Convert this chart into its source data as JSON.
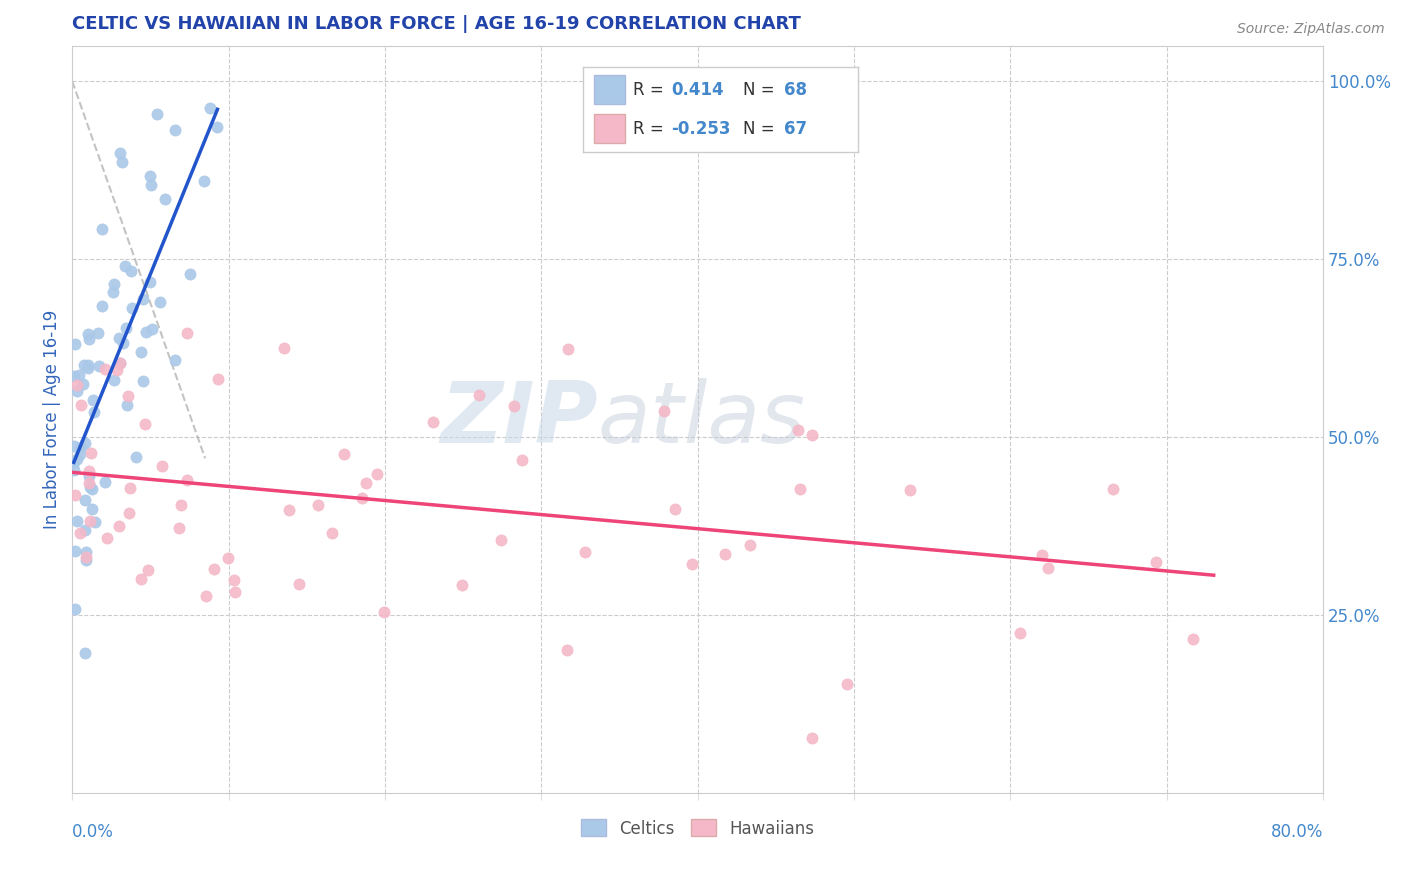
{
  "title": "CELTIC VS HAWAIIAN IN LABOR FORCE | AGE 16-19 CORRELATION CHART",
  "source": "Source: ZipAtlas.com",
  "ylabel": "In Labor Force | Age 16-19",
  "right_yticks": [
    0.25,
    0.5,
    0.75,
    1.0
  ],
  "right_yticklabels": [
    "25.0%",
    "50.0%",
    "75.0%",
    "100.0%"
  ],
  "legend_r1": "R =  0.414",
  "legend_n1": "N = 68",
  "legend_r2": "R = -0.253",
  "legend_n2": "N = 67",
  "celtics_color": "#aac8e8",
  "hawaiians_color": "#f4b8c8",
  "celtics_line_color": "#2255cc",
  "hawaiians_line_color": "#ee4477",
  "title_color": "#2244aa",
  "axis_label_color": "#3366bb",
  "tick_color": "#4488cc",
  "background_color": "#ffffff",
  "watermark_zip": "ZIP",
  "watermark_atlas": "atlas",
  "xlim": [
    0.0,
    0.8
  ],
  "ylim": [
    0.0,
    1.05
  ],
  "celtics_seed": 12345,
  "hawaiians_seed": 67890
}
